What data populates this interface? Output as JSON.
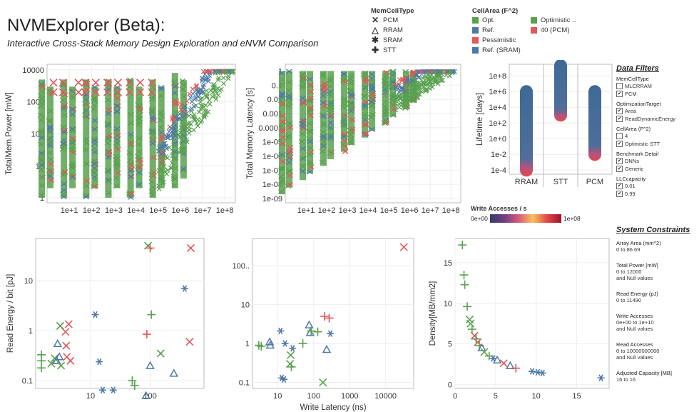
{
  "header": {
    "title": "NVMExplorer (Beta):",
    "subtitle": "Interactive Cross-Stack Memory Design Exploration and eNVM Comparison"
  },
  "legend": {
    "memcell": {
      "title": "MemCellType",
      "items": [
        {
          "label": "PCM",
          "glyph": "✕"
        },
        {
          "label": "RRAM",
          "glyph": "△"
        },
        {
          "label": "SRAM",
          "glyph": "✱"
        },
        {
          "label": "STT",
          "glyph": "✚"
        }
      ]
    },
    "cellarea": {
      "title": "CellArea (F^2)",
      "col1": [
        {
          "label": "Opt.",
          "color": "#59a14f"
        },
        {
          "label": "Ref.",
          "color": "#4e79a7"
        },
        {
          "label": "Pessimistic",
          "color": "#e15759"
        },
        {
          "label": "Ref. (SRAM)",
          "color": "#4e79a7"
        }
      ],
      "col2": [
        {
          "label": "Optimistic ..",
          "color": "#59a14f"
        },
        {
          "label": "40 (PCM)",
          "color": "#e15759"
        }
      ]
    }
  },
  "colors": {
    "green": "#59a14f",
    "blue": "#4e79a7",
    "red": "#e15759"
  },
  "colorbar": {
    "title": "Write Accesses / s",
    "min": "0e+00",
    "max": "1e+08"
  },
  "filters": {
    "title": "Data Filters",
    "groups": [
      {
        "title": "MemCellType",
        "items": [
          {
            "label": "MLCRRAM",
            "checked": false
          },
          {
            "label": "PCM",
            "checked": true
          }
        ]
      },
      {
        "title": "OptimizationTarget",
        "items": [
          {
            "label": "Area",
            "checked": true
          },
          {
            "label": "ReadDynamicEnergy",
            "checked": true
          }
        ]
      },
      {
        "title": "CellArea (F^2)",
        "items": [
          {
            "label": "4",
            "checked": false
          },
          {
            "label": "Optimistic STT",
            "checked": true
          }
        ]
      },
      {
        "title": "Benchmark Detail",
        "items": [
          {
            "label": "DNNs",
            "checked": true
          },
          {
            "label": "Generic",
            "checked": true
          }
        ]
      },
      {
        "title": "LLCcapacity",
        "items": [
          {
            "label": "0.01",
            "checked": true
          },
          {
            "label": "0.99",
            "checked": true
          }
        ]
      }
    ]
  },
  "constraints": {
    "title": "System Constraints",
    "items": [
      {
        "title": "Array Area (mm^2)",
        "lines": [
          "0 to 86.69"
        ]
      },
      {
        "title": "Total Power [mW]",
        "lines": [
          "0 to 12000",
          "and Null values"
        ]
      },
      {
        "title": "Read Energy (pJ)",
        "lines": [
          "0 to 11490"
        ]
      },
      {
        "title": "Write Accesses",
        "lines": [
          "0e+00 to 1e+10",
          "and Null values"
        ]
      },
      {
        "title": "Read Accesses",
        "lines": [
          "0 to 10000000000",
          "and Null values"
        ]
      },
      {
        "title": "Adjusted Capacity [MB]",
        "lines": [
          "16 to 16"
        ]
      }
    ]
  },
  "chart_data": [
    {
      "id": "power",
      "type": "scatter",
      "title": "",
      "xlabel": "",
      "ylabel": "TotalMem.Power [mW]",
      "xscale": "log",
      "yscale": "log",
      "xlim": [
        1,
        300000000
      ],
      "ylim": [
        0.7,
        15000
      ],
      "xticks": [
        "1e+1",
        "1e+2",
        "1e+3",
        "1e+4",
        "1e+5",
        "1e+6",
        "1e+7",
        "1e+8"
      ],
      "yticks": [
        "1",
        "10",
        "100",
        "1000",
        "10000"
      ],
      "bands": [
        {
          "x": 1,
          "ymin": 1,
          "ymax": 5000
        },
        {
          "x": 10,
          "ymin": 1,
          "ymax": 5000
        },
        {
          "x": 100,
          "ymin": 1,
          "ymax": 5000
        },
        {
          "x": 1000,
          "ymin": 1,
          "ymax": 5000
        },
        {
          "x": 10000,
          "ymin": 1,
          "ymax": 5000
        },
        {
          "x": 100000,
          "ymin": 1,
          "ymax": 5000
        },
        {
          "x": 1000000,
          "ymin": 2,
          "ymax": 8000
        }
      ],
      "note": "dense cloud rising from 1e+5 to 1e+8"
    },
    {
      "id": "latency",
      "type": "scatter",
      "title": "",
      "xlabel": "",
      "ylabel": "Total Memory Latency [s]",
      "xscale": "log",
      "yscale": "log",
      "xlim": [
        1,
        300000000
      ],
      "ylim": [
        5e-10,
        3
      ],
      "xticks": [
        "1e+1",
        "1e+2",
        "1e+3",
        "1e+4",
        "1e+5",
        "1e+6",
        "1e+7",
        "1e+8"
      ],
      "yticks": [
        "1e-09",
        "1e-08",
        "1e-07",
        "1e-06",
        "1e-05",
        "0.0001",
        "0.001",
        "0.01",
        "0.1",
        "1"
      ],
      "bands": [
        {
          "x": 1,
          "ymin": 2e-09,
          "ymax": 1
        },
        {
          "x": 10,
          "ymin": 2e-08,
          "ymax": 1
        },
        {
          "x": 100,
          "ymin": 2e-07,
          "ymax": 1
        },
        {
          "x": 1000,
          "ymin": 2e-06,
          "ymax": 1
        },
        {
          "x": 10000,
          "ymin": 2e-05,
          "ymax": 1
        },
        {
          "x": 100000,
          "ymin": 0.0002,
          "ymax": 1
        },
        {
          "x": 1000000,
          "ymin": 0.002,
          "ymax": 1
        }
      ]
    },
    {
      "id": "lifetime",
      "type": "scatter",
      "title": "",
      "xlabel": "",
      "ylabel": "Lifetime [days]",
      "categories": [
        "RRAM",
        "STT",
        "PCM"
      ],
      "yscale": "log",
      "ylim": [
        3e-05,
        3000000000
      ],
      "yticks": [
        "1e-4",
        "1e-2",
        "1e+0",
        "1e+2",
        "1e+4",
        "1e+6",
        "1e+8"
      ],
      "columns": [
        {
          "category": "RRAM",
          "ymin": 0.0001,
          "ymax": 1000000
        },
        {
          "category": "STT",
          "ymin": 1000,
          "ymax": 2000000000
        },
        {
          "category": "PCM",
          "ymin": 0.01,
          "ymax": 1000000
        }
      ]
    },
    {
      "id": "readenergy",
      "type": "scatter",
      "title": "",
      "xlabel": "",
      "ylabel": "Read Energy / bit [pJ]",
      "xscale": "log",
      "yscale": "log",
      "xlim": [
        1.2,
        800
      ],
      "ylim": [
        0.07,
        70
      ],
      "xticks": [
        "10",
        "100"
      ],
      "yticks": [
        "0.1",
        "1",
        "10"
      ],
      "points": [
        {
          "x": 1.5,
          "y": 0.18,
          "m": "+",
          "c": "green"
        },
        {
          "x": 1.5,
          "y": 0.25,
          "m": "+",
          "c": "green"
        },
        {
          "x": 1.5,
          "y": 0.33,
          "m": "+",
          "c": "green"
        },
        {
          "x": 2.2,
          "y": 0.22,
          "m": "x",
          "c": "green"
        },
        {
          "x": 2.5,
          "y": 0.28,
          "m": "x",
          "c": "green"
        },
        {
          "x": 2.7,
          "y": 0.25,
          "m": "t",
          "c": "blue"
        },
        {
          "x": 2.8,
          "y": 0.55,
          "m": "t",
          "c": "blue"
        },
        {
          "x": 3.0,
          "y": 0.3,
          "m": "t",
          "c": "blue"
        },
        {
          "x": 3.1,
          "y": 1.25,
          "m": "x",
          "c": "green"
        },
        {
          "x": 3.2,
          "y": 0.2,
          "m": "x",
          "c": "green"
        },
        {
          "x": 3.8,
          "y": 0.95,
          "m": "x",
          "c": "red"
        },
        {
          "x": 3.9,
          "y": 0.5,
          "m": "x",
          "c": "red"
        },
        {
          "x": 4.0,
          "y": 0.3,
          "m": "x",
          "c": "red"
        },
        {
          "x": 4.3,
          "y": 1.35,
          "m": "x",
          "c": "red"
        },
        {
          "x": 4.6,
          "y": 0.25,
          "m": "x",
          "c": "red"
        },
        {
          "x": 12,
          "y": 2.1,
          "m": "*",
          "c": "blue"
        },
        {
          "x": 14,
          "y": 0.24,
          "m": "*",
          "c": "blue"
        },
        {
          "x": 16,
          "y": 0.065,
          "m": "*",
          "c": "blue"
        },
        {
          "x": 24,
          "y": 0.065,
          "m": "*",
          "c": "blue"
        },
        {
          "x": 50,
          "y": 0.1,
          "m": "+",
          "c": "green"
        },
        {
          "x": 55,
          "y": 0.08,
          "m": "+",
          "c": "green"
        },
        {
          "x": 85,
          "y": 0.05,
          "m": "t",
          "c": "blue"
        },
        {
          "x": 88,
          "y": 0.85,
          "m": "+",
          "c": "red"
        },
        {
          "x": 92,
          "y": 50,
          "m": "x",
          "c": "green"
        },
        {
          "x": 100,
          "y": 45,
          "m": "+",
          "c": "red"
        },
        {
          "x": 105,
          "y": 2.1,
          "m": "+",
          "c": "green"
        },
        {
          "x": 100,
          "y": 0.2,
          "m": "t",
          "c": "blue"
        },
        {
          "x": 150,
          "y": 0.35,
          "m": "x",
          "c": "green"
        },
        {
          "x": 250,
          "y": 0.14,
          "m": "t",
          "c": "blue"
        },
        {
          "x": 380,
          "y": 7.0,
          "m": "*",
          "c": "blue"
        },
        {
          "x": 460,
          "y": 0.6,
          "m": "x",
          "c": "red"
        },
        {
          "x": 480,
          "y": 45,
          "m": "x",
          "c": "red"
        }
      ]
    },
    {
      "id": "writelat",
      "type": "scatter",
      "title": "",
      "xlabel": "Write Latency (ns)",
      "ylabel": "",
      "xscale": "log",
      "yscale": "log",
      "xlim": [
        2,
        60000
      ],
      "ylim": [
        0.07,
        500
      ],
      "xticks": [
        "10",
        "100",
        "1000",
        "10000"
      ],
      "yticks": [
        "0.1",
        "1",
        "10",
        "100.."
      ],
      "points": [
        {
          "x": 3,
          "y": 0.9,
          "m": "+",
          "c": "green"
        },
        {
          "x": 3.5,
          "y": 0.85,
          "m": "+",
          "c": "green"
        },
        {
          "x": 6,
          "y": 1.1,
          "m": "t",
          "c": "blue"
        },
        {
          "x": 6.2,
          "y": 0.9,
          "m": "t",
          "c": "blue"
        },
        {
          "x": 12,
          "y": 2.1,
          "m": "*",
          "c": "blue"
        },
        {
          "x": 13,
          "y": 0.13,
          "m": "*",
          "c": "blue"
        },
        {
          "x": 15,
          "y": 0.12,
          "m": "*",
          "c": "blue"
        },
        {
          "x": 16,
          "y": 1.0,
          "m": "*",
          "c": "blue"
        },
        {
          "x": 22,
          "y": 0.3,
          "m": "x",
          "c": "green"
        },
        {
          "x": 23,
          "y": 0.5,
          "m": "x",
          "c": "green"
        },
        {
          "x": 24,
          "y": 0.25,
          "m": "+",
          "c": "green"
        },
        {
          "x": 26,
          "y": 0.75,
          "m": "*",
          "c": "blue"
        },
        {
          "x": 50,
          "y": 1.0,
          "m": "+",
          "c": "green"
        },
        {
          "x": 75,
          "y": 3.0,
          "m": "t",
          "c": "blue"
        },
        {
          "x": 80,
          "y": 1.9,
          "m": "t",
          "c": "blue"
        },
        {
          "x": 85,
          "y": 2.1,
          "m": "+",
          "c": "green"
        },
        {
          "x": 130,
          "y": 2.0,
          "m": "+",
          "c": "green"
        },
        {
          "x": 180,
          "y": 0.1,
          "m": "x",
          "c": "green"
        },
        {
          "x": 200,
          "y": 5.0,
          "m": "+",
          "c": "red"
        },
        {
          "x": 270,
          "y": 4.5,
          "m": "+",
          "c": "red"
        },
        {
          "x": 230,
          "y": 0.7,
          "m": "t",
          "c": "blue"
        },
        {
          "x": 290,
          "y": 1.8,
          "m": "*",
          "c": "blue"
        },
        {
          "x": 32000,
          "y": 300,
          "m": "x",
          "c": "red"
        }
      ]
    },
    {
      "id": "density",
      "type": "scatter",
      "title": "",
      "xlabel": "",
      "ylabel": "Density[MB/mm2]",
      "xscale": "linear",
      "yscale": "linear",
      "xlim": [
        0,
        19
      ],
      "ylim": [
        -0.5,
        18
      ],
      "xticks": [
        "0",
        "5",
        "10",
        "15"
      ],
      "yticks": [
        "0",
        "5",
        "10",
        "15"
      ],
      "points": [
        {
          "x": 0.9,
          "y": 17.2,
          "m": "+",
          "c": "green"
        },
        {
          "x": 1.1,
          "y": 13.5,
          "m": "+",
          "c": "green"
        },
        {
          "x": 1.2,
          "y": 12.3,
          "m": "+",
          "c": "green"
        },
        {
          "x": 1.5,
          "y": 9.6,
          "m": "+",
          "c": "green"
        },
        {
          "x": 1.8,
          "y": 8.0,
          "m": "x",
          "c": "green"
        },
        {
          "x": 1.9,
          "y": 7.5,
          "m": "x",
          "c": "green"
        },
        {
          "x": 2.1,
          "y": 6.8,
          "m": "+",
          "c": "green"
        },
        {
          "x": 2.4,
          "y": 6.0,
          "m": "x",
          "c": "red"
        },
        {
          "x": 2.6,
          "y": 5.6,
          "m": "+",
          "c": "green"
        },
        {
          "x": 2.8,
          "y": 5.2,
          "m": "x",
          "c": "red"
        },
        {
          "x": 3.0,
          "y": 4.8,
          "m": "+",
          "c": "green"
        },
        {
          "x": 3.3,
          "y": 4.5,
          "m": "t",
          "c": "blue"
        },
        {
          "x": 3.6,
          "y": 4.0,
          "m": "x",
          "c": "green"
        },
        {
          "x": 4.2,
          "y": 3.5,
          "m": "+",
          "c": "green"
        },
        {
          "x": 4.7,
          "y": 3.2,
          "m": "*",
          "c": "blue"
        },
        {
          "x": 5.2,
          "y": 3.0,
          "m": "t",
          "c": "blue"
        },
        {
          "x": 6.0,
          "y": 2.6,
          "m": "x",
          "c": "red"
        },
        {
          "x": 6.8,
          "y": 2.3,
          "m": "t",
          "c": "blue"
        },
        {
          "x": 7.5,
          "y": 2.0,
          "m": "+",
          "c": "red"
        },
        {
          "x": 9.5,
          "y": 1.6,
          "m": "*",
          "c": "blue"
        },
        {
          "x": 10.2,
          "y": 1.5,
          "m": "*",
          "c": "blue"
        },
        {
          "x": 10.8,
          "y": 1.4,
          "m": "*",
          "c": "blue"
        },
        {
          "x": 18.0,
          "y": 0.8,
          "m": "*",
          "c": "blue"
        }
      ]
    }
  ]
}
